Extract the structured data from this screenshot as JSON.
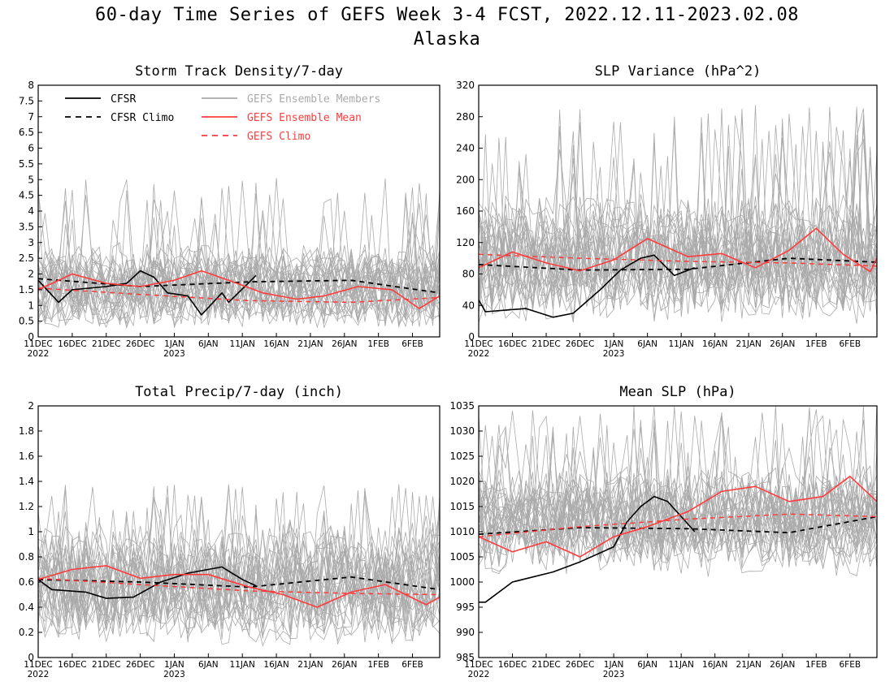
{
  "title_line1": "60-day Time Series of GEFS Week 3-4 FCST, 2022.12.11-2023.02.08",
  "title_line2": "Alaska",
  "colors": {
    "cfsr": "#000000",
    "members": "#aaaaaa",
    "ens_mean": "#ff3b3b",
    "gefs_climo": "#ff3b3b"
  },
  "x_ticks": [
    "11DEC",
    "16DEC",
    "21DEC",
    "26DEC",
    "1JAN",
    "6JAN",
    "11JAN",
    "16JAN",
    "21JAN",
    "26JAN",
    "1FEB",
    "6FEB"
  ],
  "x_year_labels": [
    "2022",
    "2023"
  ],
  "legend": [
    {
      "label": "CFSR",
      "style": "solid",
      "color": "#000000"
    },
    {
      "label": "CFSR Climo",
      "style": "dashed",
      "color": "#000000"
    },
    {
      "label": "GEFS Ensemble Members",
      "style": "solid",
      "color": "#aaaaaa"
    },
    {
      "label": "GEFS Ensemble Mean",
      "style": "solid",
      "color": "#ff3b3b"
    },
    {
      "label": "GEFS Climo",
      "style": "dashed",
      "color": "#ff3b3b"
    }
  ],
  "chart_data": [
    {
      "type": "line",
      "title": "Storm Track Density/7-day",
      "x_start": "2022-12-11",
      "x_end": "2023-02-08",
      "ylim": [
        0,
        8
      ],
      "yticks": [
        "0",
        "0.5",
        "1",
        "1.5",
        "2",
        "2.5",
        "3",
        "3.5",
        "4",
        "4.5",
        "5",
        "5.5",
        "6",
        "6.5",
        "7",
        "7.5",
        "8"
      ],
      "members": {
        "center": 1.6,
        "spread": 1.0,
        "max_peak": 5.1
      },
      "series": [
        {
          "name": "CFSR",
          "x": [
            "2022-12-11",
            "2022-12-14",
            "2022-12-16",
            "2022-12-21",
            "2022-12-24",
            "2022-12-26",
            "2022-12-28",
            "2022-12-30",
            "2023-01-02",
            "2023-01-04",
            "2023-01-07",
            "2023-01-08",
            "2023-01-12"
          ],
          "values": [
            1.8,
            1.1,
            1.5,
            1.6,
            1.7,
            2.1,
            1.9,
            1.4,
            1.3,
            0.7,
            1.4,
            1.1,
            1.95
          ]
        },
        {
          "name": "CFSR Climo",
          "x": [
            "2022-12-11",
            "2022-12-26",
            "2023-01-11",
            "2023-01-26",
            "2023-02-08"
          ],
          "values": [
            1.85,
            1.6,
            1.75,
            1.8,
            1.4
          ]
        },
        {
          "name": "GEFS Ensemble Mean",
          "x": [
            "2022-12-11",
            "2022-12-16",
            "2022-12-21",
            "2022-12-26",
            "2022-12-31",
            "2023-01-04",
            "2023-01-08",
            "2023-01-13",
            "2023-01-18",
            "2023-01-22",
            "2023-01-27",
            "2023-02-01",
            "2023-02-05",
            "2023-02-08"
          ],
          "values": [
            1.5,
            2.0,
            1.7,
            1.6,
            1.8,
            2.1,
            1.8,
            1.4,
            1.2,
            1.3,
            1.6,
            1.5,
            0.9,
            1.3
          ]
        },
        {
          "name": "GEFS Climo",
          "x": [
            "2022-12-11",
            "2022-12-26",
            "2023-01-11",
            "2023-01-26",
            "2023-02-08"
          ],
          "values": [
            1.55,
            1.35,
            1.15,
            1.1,
            1.25
          ]
        }
      ]
    },
    {
      "type": "line",
      "title": "SLP Variance (hPa^2)",
      "x_start": "2022-12-11",
      "x_end": "2023-02-08",
      "ylim": [
        0,
        320
      ],
      "yticks": [
        "0",
        "40",
        "80",
        "120",
        "160",
        "200",
        "240",
        "280",
        "320"
      ],
      "members": {
        "center": 100,
        "spread": 60,
        "max_peak": 295
      },
      "series": [
        {
          "name": "CFSR",
          "x": [
            "2022-12-11",
            "2022-12-12",
            "2022-12-18",
            "2022-12-22",
            "2022-12-25",
            "2022-12-29",
            "2023-01-01",
            "2023-01-04",
            "2023-01-06",
            "2023-01-09",
            "2023-01-12"
          ],
          "values": [
            47,
            32,
            36,
            25,
            30,
            60,
            85,
            100,
            104,
            78,
            88
          ]
        },
        {
          "name": "CFSR Climo",
          "x": [
            "2022-12-11",
            "2022-12-26",
            "2023-01-11",
            "2023-01-26",
            "2023-02-08"
          ],
          "values": [
            92,
            85,
            86,
            100,
            95
          ]
        },
        {
          "name": "GEFS Ensemble Mean",
          "x": [
            "2022-12-11",
            "2022-12-16",
            "2022-12-21",
            "2022-12-26",
            "2022-12-31",
            "2023-01-05",
            "2023-01-11",
            "2023-01-16",
            "2023-01-21",
            "2023-01-26",
            "2023-01-30",
            "2023-02-03",
            "2023-02-07",
            "2023-02-08"
          ],
          "values": [
            88,
            108,
            94,
            84,
            98,
            125,
            102,
            106,
            88,
            110,
            138,
            105,
            83,
            100
          ]
        },
        {
          "name": "GEFS Climo",
          "x": [
            "2022-12-11",
            "2022-12-26",
            "2023-01-11",
            "2023-01-26",
            "2023-02-08"
          ],
          "values": [
            105,
            100,
            96,
            94,
            90
          ]
        }
      ]
    },
    {
      "type": "line",
      "title": "Total Precip/7-day (inch)",
      "x_start": "2022-12-11",
      "x_end": "2023-02-08",
      "ylim": [
        0,
        2
      ],
      "yticks": [
        "0",
        "0.2",
        "0.4",
        "0.6",
        "0.8",
        "1",
        "1.2",
        "1.4",
        "1.6",
        "1.8",
        "2"
      ],
      "members": {
        "center": 0.58,
        "spread": 0.35,
        "max_peak": 1.38
      },
      "series": [
        {
          "name": "CFSR",
          "x": [
            "2022-12-11",
            "2022-12-13",
            "2022-12-18",
            "2022-12-21",
            "2022-12-25",
            "2022-12-29",
            "2023-01-02",
            "2023-01-05",
            "2023-01-07",
            "2023-01-10",
            "2023-01-12"
          ],
          "values": [
            0.62,
            0.54,
            0.52,
            0.47,
            0.48,
            0.6,
            0.67,
            0.7,
            0.72,
            0.62,
            0.57
          ]
        },
        {
          "name": "CFSR Climo",
          "x": [
            "2022-12-11",
            "2022-12-26",
            "2023-01-11",
            "2023-01-26",
            "2023-02-08"
          ],
          "values": [
            0.62,
            0.6,
            0.56,
            0.64,
            0.54
          ]
        },
        {
          "name": "GEFS Ensemble Mean",
          "x": [
            "2022-12-11",
            "2022-12-16",
            "2022-12-21",
            "2022-12-26",
            "2022-12-31",
            "2023-01-05",
            "2023-01-11",
            "2023-01-16",
            "2023-01-21",
            "2023-01-26",
            "2023-01-31",
            "2023-02-06",
            "2023-02-08"
          ],
          "values": [
            0.62,
            0.7,
            0.73,
            0.63,
            0.66,
            0.66,
            0.56,
            0.5,
            0.4,
            0.52,
            0.58,
            0.42,
            0.48
          ]
        },
        {
          "name": "GEFS Climo",
          "x": [
            "2022-12-11",
            "2022-12-26",
            "2023-01-11",
            "2023-01-26",
            "2023-02-08"
          ],
          "values": [
            0.63,
            0.58,
            0.53,
            0.51,
            0.5
          ]
        }
      ]
    },
    {
      "type": "line",
      "title": "Mean SLP (hPa)",
      "x_start": "2022-12-11",
      "x_end": "2023-02-08",
      "ylim": [
        985,
        1035
      ],
      "yticks": [
        "985",
        "990",
        "995",
        "1000",
        "1005",
        "1010",
        "1015",
        "1020",
        "1025",
        "1030",
        "1035"
      ],
      "members": {
        "center": 1012,
        "spread": 8,
        "max_peak": 1035
      },
      "series": [
        {
          "name": "CFSR",
          "x": [
            "2022-12-11",
            "2022-12-12",
            "2022-12-16",
            "2022-12-19",
            "2022-12-22",
            "2022-12-26",
            "2022-12-31",
            "2023-01-02",
            "2023-01-04",
            "2023-01-06",
            "2023-01-08",
            "2023-01-10",
            "2023-01-12"
          ],
          "values": [
            996,
            996,
            1000,
            1001,
            1002,
            1004,
            1007,
            1012,
            1015,
            1017,
            1016,
            1013,
            1010
          ]
        },
        {
          "name": "CFSR Climo",
          "x": [
            "2022-12-11",
            "2022-12-26",
            "2023-01-11",
            "2023-01-26",
            "2023-02-08"
          ],
          "values": [
            1009.5,
            1010.8,
            1010.6,
            1009.8,
            1013
          ]
        },
        {
          "name": "GEFS Ensemble Mean",
          "x": [
            "2022-12-11",
            "2022-12-16",
            "2022-12-21",
            "2022-12-26",
            "2022-12-31",
            "2023-01-05",
            "2023-01-11",
            "2023-01-16",
            "2023-01-21",
            "2023-01-26",
            "2023-01-31",
            "2023-02-04",
            "2023-02-08"
          ],
          "values": [
            1009,
            1006,
            1008,
            1005,
            1009,
            1011,
            1014,
            1018,
            1019,
            1016,
            1017,
            1021,
            1016
          ]
        },
        {
          "name": "GEFS Climo",
          "x": [
            "2022-12-11",
            "2022-12-26",
            "2023-01-11",
            "2023-01-26",
            "2023-02-08"
          ],
          "values": [
            1009,
            1011,
            1012.5,
            1013.5,
            1013
          ]
        }
      ]
    }
  ]
}
